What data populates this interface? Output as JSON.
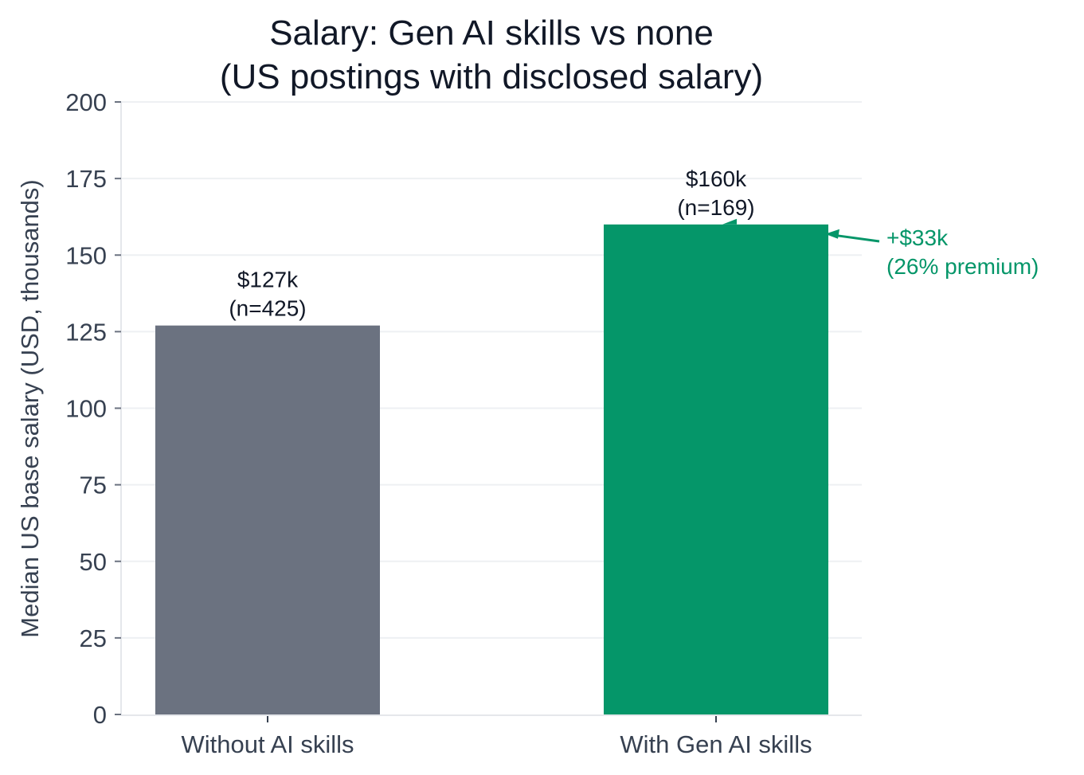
{
  "chart_data": {
    "type": "bar",
    "title_lines": [
      "Salary: Gen AI skills vs none",
      "(US postings with disclosed salary)"
    ],
    "xlabel": "",
    "ylabel": "Median US base salary (USD, thousands)",
    "ylim": [
      0,
      200
    ],
    "yticks": [
      0,
      25,
      50,
      75,
      100,
      125,
      150,
      175,
      200
    ],
    "grid": true,
    "categories": [
      "Without AI skills",
      "With Gen AI skills"
    ],
    "values": [
      127,
      160
    ],
    "colors": [
      "#6b7280",
      "#059669"
    ],
    "data_labels": [
      [
        "$127k",
        "(n=425)"
      ],
      [
        "$160k",
        "(n=169)"
      ]
    ],
    "annotation": {
      "lines": [
        "+$33k",
        "(26% premium)"
      ],
      "color": "#059669",
      "points_to_category": 1
    }
  }
}
